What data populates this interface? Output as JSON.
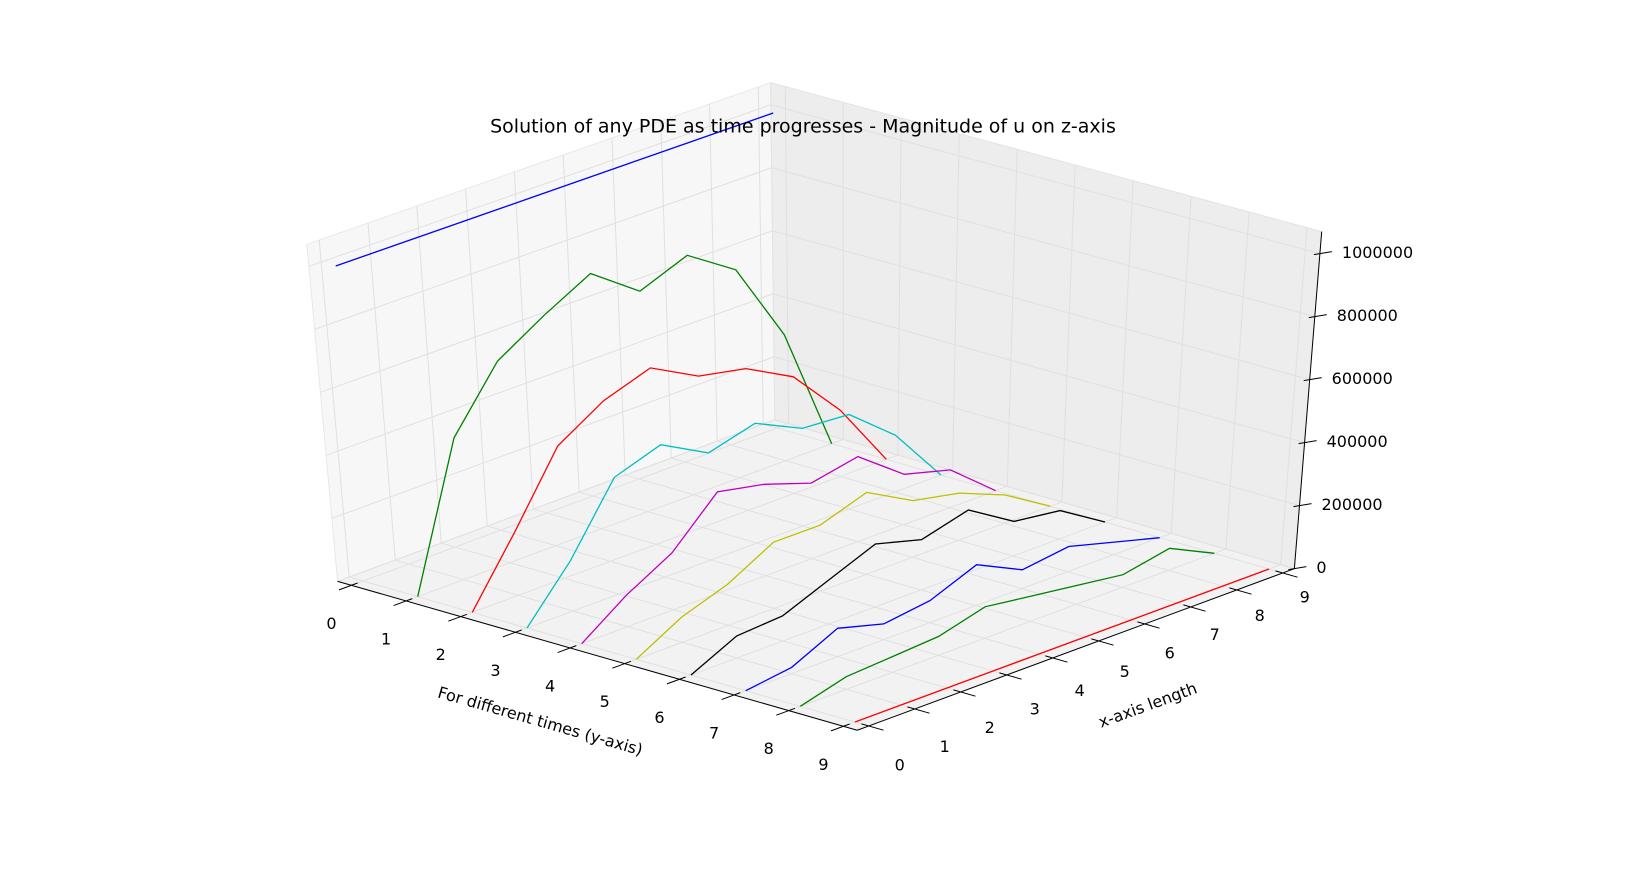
{
  "chart_data": {
    "type": "line3d",
    "title": "Solution of any PDE as time progresses - Magnitude of u on z-axis",
    "xlabel": "x-axis length",
    "ylabel": "For different times (y-axis)",
    "x": [
      0,
      1,
      2,
      3,
      4,
      5,
      6,
      7,
      8,
      9
    ],
    "y": [
      0,
      1,
      2,
      3,
      4,
      5,
      6,
      7,
      8,
      9
    ],
    "series": [
      {
        "color": "#0000ff",
        "values": [
          1000000,
          1000000,
          1000000,
          1000000,
          1000000,
          1000000,
          1000000,
          1000000,
          1000000,
          1000000
        ]
      },
      {
        "color": "#008000",
        "values": [
          0,
          450000,
          640000,
          730000,
          810000,
          700000,
          760000,
          660000,
          400000,
          0
        ]
      },
      {
        "color": "#ff0000",
        "values": [
          0,
          200000,
          420000,
          510000,
          560000,
          480000,
          450000,
          370000,
          210000,
          0
        ]
      },
      {
        "color": "#00bfbf",
        "values": [
          0,
          160000,
          370000,
          420000,
          340000,
          380000,
          310000,
          300000,
          180000,
          0
        ]
      },
      {
        "color": "#bf00bf",
        "values": [
          0,
          100000,
          180000,
          320000,
          290000,
          240000,
          270000,
          160000,
          120000,
          0
        ]
      },
      {
        "color": "#bfbf00",
        "values": [
          0,
          80000,
          130000,
          210000,
          210000,
          260000,
          180000,
          150000,
          90000,
          0
        ]
      },
      {
        "color": "#000000",
        "values": [
          0,
          70000,
          80000,
          140000,
          200000,
          160000,
          200000,
          110000,
          90000,
          0
        ]
      },
      {
        "color": "#0000ff",
        "values": [
          0,
          20000,
          90000,
          50000,
          70000,
          130000,
          60000,
          80000,
          40000,
          0
        ]
      },
      {
        "color": "#008000",
        "values": [
          0,
          40000,
          50000,
          60000,
          100000,
          80000,
          60000,
          40000,
          70000,
          0
        ]
      },
      {
        "color": "#ff0000",
        "values": [
          0,
          0,
          0,
          0,
          0,
          0,
          0,
          0,
          0,
          0
        ]
      }
    ],
    "xlim": [
      0,
      9
    ],
    "xticks": [
      0,
      1,
      2,
      3,
      4,
      5,
      6,
      7,
      8,
      9
    ],
    "ylim": [
      0,
      9
    ],
    "yticks": [
      0,
      1,
      2,
      3,
      4,
      5,
      6,
      7,
      8,
      9
    ],
    "zlim": [
      0,
      1000000
    ],
    "zticks": [
      0,
      200000,
      400000,
      600000,
      800000,
      1000000
    ],
    "grid": true
  }
}
